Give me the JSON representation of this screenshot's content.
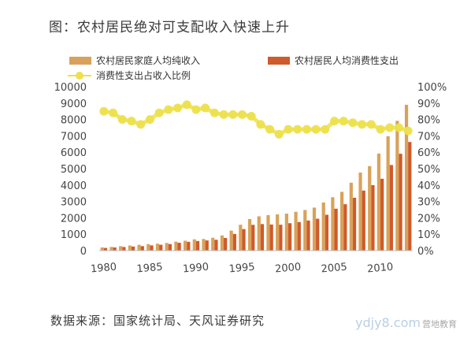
{
  "title": "图：农村居民绝对可支配收入快速上升",
  "source": "数据来源：国家统计局、天风证券研究",
  "watermark": "ydjy8.com",
  "watermark_sub": "营地教育",
  "colors": {
    "income": "#d9a25a",
    "consumption": "#cf5a2b",
    "ratio": "#ece04d"
  },
  "chart_data": {
    "type": "bar",
    "title": "图：农村居民绝对可支配收入快速上升",
    "xlabel": "",
    "ylabel": "",
    "x": [
      1980,
      1981,
      1982,
      1983,
      1984,
      1985,
      1986,
      1987,
      1988,
      1989,
      1990,
      1991,
      1992,
      1993,
      1994,
      1995,
      1996,
      1997,
      1998,
      1999,
      2000,
      2001,
      2002,
      2003,
      2004,
      2005,
      2006,
      2007,
      2008,
      2009,
      2010,
      2011,
      2012,
      2013
    ],
    "x_ticks": [
      "1980",
      "1985",
      "1990",
      "1995",
      "2000",
      "2005",
      "2010"
    ],
    "ylim": [
      0,
      10000
    ],
    "y_ticks": [
      "0",
      "1000",
      "2000",
      "3000",
      "4000",
      "5000",
      "6000",
      "7000",
      "8000",
      "9000",
      "10000"
    ],
    "y2lim": [
      0,
      100
    ],
    "y2_ticks": [
      "0%",
      "10%",
      "20%",
      "30%",
      "40%",
      "50%",
      "60%",
      "70%",
      "80%",
      "90%",
      "100%"
    ],
    "legend_position": "top",
    "series": [
      {
        "name": "农村居民家庭人均纯收入",
        "type": "bar",
        "axis": "left",
        "values": [
          191,
          223,
          270,
          310,
          355,
          398,
          424,
          463,
          545,
          602,
          686,
          709,
          784,
          922,
          1221,
          1578,
          1926,
          2090,
          2162,
          2210,
          2253,
          2366,
          2476,
          2622,
          2936,
          3255,
          3587,
          4140,
          4761,
          5153,
          5919,
          6977,
          7917,
          8896
        ]
      },
      {
        "name": "农村居民人均消费性支出",
        "type": "bar",
        "axis": "left",
        "values": [
          162,
          191,
          220,
          248,
          273,
          317,
          357,
          398,
          477,
          535,
          585,
          620,
          659,
          770,
          1017,
          1310,
          1572,
          1617,
          1590,
          1577,
          1670,
          1741,
          1834,
          1943,
          2185,
          2555,
          2829,
          3224,
          3661,
          3993,
          4382,
          5221,
          5908,
          6626
        ]
      },
      {
        "name": "消费性支出占收入比例",
        "type": "line",
        "axis": "right",
        "values": [
          85,
          84,
          80,
          79,
          77,
          80,
          84,
          86,
          87,
          89,
          86,
          87,
          84,
          83,
          83,
          83,
          82,
          77,
          74,
          71,
          74,
          74,
          74,
          74,
          74,
          79,
          79,
          78,
          77,
          77,
          74,
          75,
          75,
          73
        ]
      }
    ]
  }
}
